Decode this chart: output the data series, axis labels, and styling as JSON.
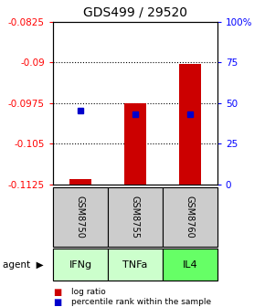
{
  "title": "GDS499 / 29520",
  "samples": [
    "GSM8750",
    "GSM8755",
    "GSM8760"
  ],
  "agents": [
    "IFNg",
    "TNFa",
    "IL4"
  ],
  "log_ratios": [
    -0.1115,
    -0.0975,
    -0.0903
  ],
  "percentile_ranks": [
    45,
    43,
    43
  ],
  "bar_base": -0.1125,
  "ylim_left": [
    -0.1125,
    -0.0825
  ],
  "ylim_right": [
    0,
    100
  ],
  "yticks_left": [
    -0.1125,
    -0.105,
    -0.0975,
    -0.09,
    -0.0825
  ],
  "yticks_right": [
    0,
    25,
    50,
    75,
    100
  ],
  "ytick_labels_left": [
    "-0.1125",
    "-0.105",
    "-0.0975",
    "-0.09",
    "-0.0825"
  ],
  "ytick_labels_right": [
    "0",
    "25",
    "50",
    "75",
    "100%"
  ],
  "grid_ticks": [
    -0.09,
    -0.0975,
    -0.105
  ],
  "bar_color": "#cc0000",
  "dot_color": "#0000cc",
  "sample_bg": "#cccccc",
  "agent_colors": [
    "#ccffcc",
    "#ccffcc",
    "#66ff66"
  ],
  "background_color": "#ffffff",
  "title_fontsize": 10,
  "tick_fontsize": 7.5,
  "bar_width": 0.4
}
